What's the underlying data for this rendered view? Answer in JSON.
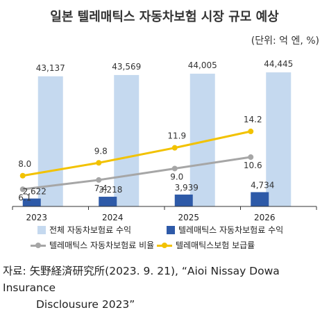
{
  "title": "일본 텔레매틱스 자동차보험 시장 규모 예상",
  "unit_note": "(단위: 억 엔, %)",
  "chart_data": {
    "type": "bar",
    "categories": [
      "2023",
      "2024",
      "2025",
      "2026"
    ],
    "series": [
      {
        "name": "전체 자동차보험료 수익",
        "kind": "bar",
        "axis": "left",
        "color": "#c5d9ef",
        "values": [
          43137,
          43569,
          44005,
          44445
        ],
        "labels": [
          "43,137",
          "43,569",
          "44,005",
          "44,445"
        ]
      },
      {
        "name": "텔레매틱스 자동차보험료 수익",
        "kind": "bar",
        "axis": "left",
        "color": "#2e5aa8",
        "values": [
          2622,
          3218,
          3939,
          4734
        ],
        "labels": [
          "2,622",
          "3,218",
          "3,939",
          "4,734"
        ]
      },
      {
        "name": "텔레매틱스 자동차보험료 비율",
        "kind": "line",
        "axis": "right",
        "color": "#a6a6a6",
        "values": [
          6.1,
          7.4,
          9.0,
          10.6
        ],
        "labels": [
          "6.1",
          "7.4",
          "9.0",
          "10.6"
        ]
      },
      {
        "name": "텔레매틱스보험 보급률",
        "kind": "line",
        "axis": "right",
        "color": "#f2c200",
        "values": [
          8.0,
          9.8,
          11.9,
          14.2
        ],
        "labels": [
          "8.0",
          "9.8",
          "11.9",
          "14.2"
        ]
      }
    ],
    "ylim": [
      0,
      50000
    ],
    "y2lim": [
      0,
      25
    ],
    "grid": false,
    "legend": "bottom"
  },
  "source": {
    "line1": "자료: 矢野経済研究所(2023. 9. 21), “Aioi Nissay Dowa Insurance",
    "line2": "Disclousure 2023”"
  }
}
